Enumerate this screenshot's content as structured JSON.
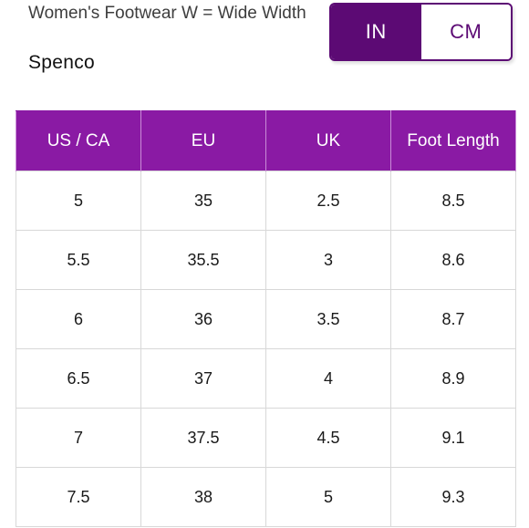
{
  "header": {
    "subtitle": "Women's Footwear W = Wide Width",
    "brand": "Spenco"
  },
  "unit_toggle": {
    "options": [
      {
        "label": "IN",
        "selected": true
      },
      {
        "label": "CM",
        "selected": false
      }
    ],
    "accent_color": "#5c0a74"
  },
  "table": {
    "header_color": "#8a1aa4",
    "columns": [
      "US / CA",
      "EU",
      "UK",
      "Foot Length"
    ],
    "rows": [
      [
        "5",
        "35",
        "2.5",
        "8.5"
      ],
      [
        "5.5",
        "35.5",
        "3",
        "8.6"
      ],
      [
        "6",
        "36",
        "3.5",
        "8.7"
      ],
      [
        "6.5",
        "37",
        "4",
        "8.9"
      ],
      [
        "7",
        "37.5",
        "4.5",
        "9.1"
      ],
      [
        "7.5",
        "38",
        "5",
        "9.3"
      ]
    ]
  }
}
